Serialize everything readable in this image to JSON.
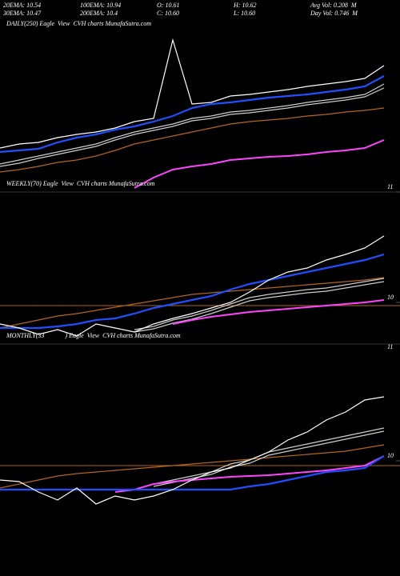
{
  "header": {
    "row1": [
      "20EMA: 10.54",
      "100EMA: 10.94",
      "O: 10.61",
      "H: 10.62",
      "Avg Vol: 0.208  M"
    ],
    "row2": [
      "30EMA: 10.47",
      "200EMA: 10.4",
      "C: 10.60",
      "L: 10.60",
      "Day Vol: 0.746  M"
    ]
  },
  "chart_data": [
    {
      "type": "line",
      "title": "DAILY(250) Eagle  View  CVH charts MunafaSutra.com",
      "ylim": [
        11,
        15.5
      ],
      "yticks": [
        11
      ],
      "series": [
        {
          "color": "#b5651d",
          "values": [
            11.5,
            11.56,
            11.64,
            11.74,
            11.8,
            11.9,
            12.04,
            12.2,
            12.3,
            12.4,
            12.5,
            12.6,
            12.7,
            12.76,
            12.8,
            12.84,
            12.9,
            12.94,
            13.0,
            13.04,
            13.1
          ]
        },
        {
          "color": "#cccccc",
          "values": [
            11.7,
            11.8,
            11.9,
            12.0,
            12.1,
            12.2,
            12.36,
            12.5,
            12.6,
            12.7,
            12.84,
            12.9,
            13.0,
            13.04,
            13.1,
            13.16,
            13.24,
            13.3,
            13.36,
            13.44,
            13.7
          ]
        },
        {
          "color": "#cccccc",
          "values": [
            11.64,
            11.72,
            11.84,
            11.94,
            12.04,
            12.14,
            12.3,
            12.44,
            12.54,
            12.64,
            12.78,
            12.84,
            12.94,
            12.98,
            13.04,
            13.1,
            13.18,
            13.24,
            13.3,
            13.38,
            13.6
          ]
        },
        {
          "color": "#ff44ff",
          "values": [
            null,
            null,
            null,
            null,
            null,
            null,
            null,
            11.1,
            11.36,
            11.56,
            11.64,
            11.7,
            11.8,
            11.84,
            11.88,
            11.9,
            11.94,
            12.0,
            12.04,
            12.1,
            12.3
          ]
        },
        {
          "color": "#1e50ff",
          "values": [
            12.0,
            12.04,
            12.08,
            12.24,
            12.36,
            12.44,
            12.56,
            12.64,
            12.76,
            12.9,
            13.1,
            13.2,
            13.24,
            13.3,
            13.36,
            13.4,
            13.44,
            13.5,
            13.56,
            13.64,
            13.9
          ]
        },
        {
          "color": "#ffffff",
          "values": [
            12.1,
            12.2,
            12.24,
            12.36,
            12.44,
            12.5,
            12.6,
            12.76,
            12.84,
            14.8,
            13.2,
            13.24,
            13.4,
            13.44,
            13.5,
            13.56,
            13.64,
            13.7,
            13.76,
            13.84,
            14.16
          ]
        }
      ]
    },
    {
      "type": "line",
      "title": "WEEKLY(70) Eagle  View  CVH charts MunafaSutra.com",
      "ylim": [
        9.48,
        11.38
      ],
      "yticks": [
        10
      ],
      "corner_label": "11",
      "hline": 9.96,
      "hline_color": "#b5651d",
      "series": [
        {
          "color": "#b5651d",
          "values": [
            9.68,
            9.73,
            9.78,
            9.83,
            9.86,
            9.9,
            9.94,
            9.98,
            10.02,
            10.06,
            10.1,
            10.12,
            10.14,
            10.16,
            10.18,
            10.2,
            10.22,
            10.24,
            10.26,
            10.28,
            10.31
          ]
        },
        {
          "color": "#cccccc",
          "values": [
            null,
            null,
            null,
            null,
            null,
            null,
            null,
            9.66,
            9.7,
            9.78,
            9.83,
            9.9,
            9.98,
            10.06,
            10.1,
            10.13,
            10.16,
            10.18,
            10.22,
            10.26,
            10.3
          ]
        },
        {
          "color": "#cccccc",
          "values": [
            null,
            null,
            null,
            null,
            null,
            null,
            null,
            9.63,
            9.67,
            9.74,
            9.79,
            9.86,
            9.94,
            10.02,
            10.06,
            10.09,
            10.12,
            10.14,
            10.18,
            10.22,
            10.26
          ]
        },
        {
          "color": "#ff44ff",
          "values": [
            null,
            null,
            null,
            null,
            null,
            null,
            null,
            null,
            null,
            9.73,
            9.78,
            9.82,
            9.85,
            9.88,
            9.9,
            9.92,
            9.94,
            9.96,
            9.98,
            10.0,
            10.03
          ]
        },
        {
          "color": "#1e50ff",
          "values": [
            9.68,
            9.68,
            9.68,
            9.7,
            9.73,
            9.78,
            9.8,
            9.86,
            9.93,
            9.98,
            10.03,
            10.08,
            10.16,
            10.23,
            10.28,
            10.33,
            10.38,
            10.43,
            10.48,
            10.53,
            10.6
          ]
        },
        {
          "color": "#ffffff",
          "values": [
            9.73,
            9.68,
            9.6,
            9.66,
            9.58,
            9.73,
            9.68,
            9.63,
            9.73,
            9.8,
            9.86,
            9.93,
            10.0,
            10.13,
            10.28,
            10.38,
            10.43,
            10.53,
            10.6,
            10.68,
            10.83
          ]
        }
      ]
    },
    {
      "type": "line",
      "title": "MONTHLY(33             ) Eagle  View  CVH charts MunafaSutra.com",
      "ylim": [
        8.86,
        11.46
      ],
      "yticks": [
        10
      ],
      "hline": 9.94,
      "hline_color": "#b5651d",
      "series": [
        {
          "color": "#b5651d",
          "values": [
            9.66,
            9.71,
            9.76,
            9.81,
            9.84,
            9.86,
            9.88,
            9.9,
            9.92,
            9.94,
            9.96,
            9.98,
            10.0,
            10.02,
            10.04,
            10.06,
            10.08,
            10.1,
            10.12,
            10.16,
            10.2
          ]
        },
        {
          "color": "#cccccc",
          "values": [
            null,
            null,
            null,
            null,
            null,
            null,
            null,
            null,
            9.71,
            9.76,
            9.81,
            9.86,
            9.96,
            10.01,
            10.11,
            10.16,
            10.21,
            10.26,
            10.31,
            10.36,
            10.41
          ]
        },
        {
          "color": "#cccccc",
          "values": [
            null,
            null,
            null,
            null,
            null,
            null,
            null,
            null,
            9.68,
            9.73,
            9.78,
            9.83,
            9.92,
            9.97,
            10.07,
            10.12,
            10.17,
            10.22,
            10.27,
            10.32,
            10.37
          ]
        },
        {
          "color": "#ff44ff",
          "values": [
            null,
            null,
            null,
            null,
            null,
            null,
            9.61,
            9.64,
            9.71,
            9.74,
            9.76,
            9.78,
            9.8,
            9.81,
            9.82,
            9.84,
            9.86,
            9.88,
            9.91,
            9.94,
            10.06
          ]
        },
        {
          "color": "#1e50ff",
          "values": [
            9.64,
            9.64,
            9.64,
            9.64,
            9.64,
            9.64,
            9.64,
            9.64,
            9.64,
            9.64,
            9.64,
            9.64,
            9.64,
            9.68,
            9.71,
            9.76,
            9.81,
            9.86,
            9.88,
            9.91,
            10.06
          ]
        },
        {
          "color": "#ffffff",
          "values": [
            9.76,
            9.74,
            9.61,
            9.51,
            9.66,
            9.46,
            9.56,
            9.51,
            9.56,
            9.64,
            9.76,
            9.86,
            9.91,
            10.01,
            10.11,
            10.26,
            10.36,
            10.51,
            10.61,
            10.76,
            10.8
          ]
        }
      ]
    }
  ]
}
